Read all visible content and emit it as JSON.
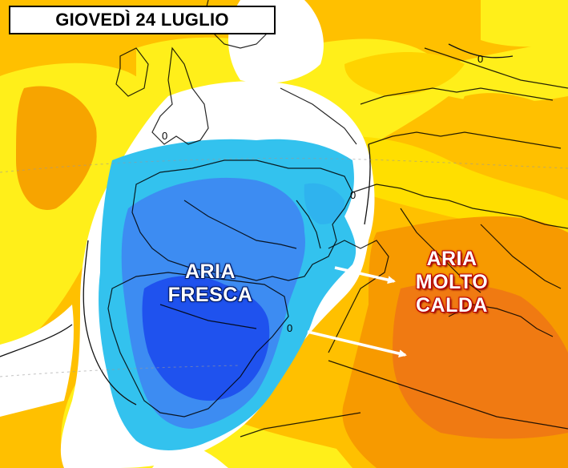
{
  "header": {
    "title": "GIOVEDÌ 24 LUGLIO"
  },
  "labels": {
    "cool_air": [
      "ARIA",
      "FRESCA"
    ],
    "hot_air": [
      "ARIA",
      "MOLTO",
      "CALDA"
    ]
  },
  "contour_labels": [
    "0",
    "0",
    "0",
    "0"
  ],
  "colors": {
    "very_cold": "#1f52ee",
    "cold": "#3d8cf2",
    "cool": "#33c2ee",
    "neutral": "#ffffff",
    "warm": "#ffef1a",
    "hot": "#ffc000",
    "very_hot": "#f79a00",
    "extreme": "#f07a12",
    "borders": "#000000",
    "arrows": "#ffffff"
  }
}
